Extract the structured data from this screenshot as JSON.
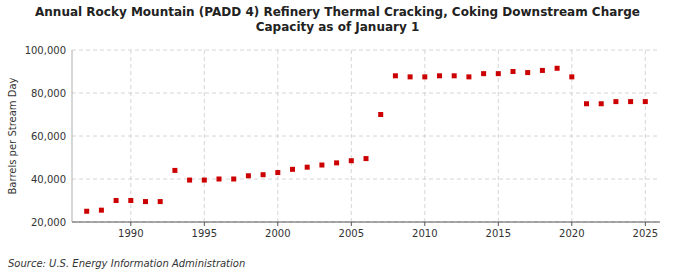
{
  "chart_data": {
    "type": "scatter",
    "title": "Annual Rocky Mountain (PADD 4) Refinery Thermal Cracking, Coking Downstream Charge\nCapacity as of January 1",
    "ylabel": "Barrels per Stream Day",
    "source": "Source: U.S. Energy Information Administration",
    "x": [
      1987,
      1988,
      1989,
      1990,
      1991,
      1992,
      1993,
      1994,
      1995,
      1996,
      1997,
      1998,
      1999,
      2000,
      2001,
      2002,
      2003,
      2004,
      2005,
      2006,
      2007,
      2008,
      2009,
      2010,
      2011,
      2012,
      2013,
      2014,
      2015,
      2016,
      2017,
      2018,
      2019,
      2020,
      2021,
      2022,
      2023,
      2024,
      2025
    ],
    "values": [
      25000,
      25500,
      30000,
      30000,
      29500,
      29500,
      44000,
      39500,
      39500,
      40000,
      40000,
      41500,
      42000,
      43000,
      44500,
      45500,
      46500,
      47500,
      48500,
      49500,
      70000,
      88000,
      87500,
      87500,
      88000,
      88000,
      87500,
      89000,
      89000,
      90000,
      89500,
      90500,
      91500,
      87500,
      75000,
      75000,
      76000,
      76000,
      76000
    ],
    "color": "#cc0000",
    "marker": "square",
    "xlim": [
      1986,
      2026
    ],
    "xticks": [
      1990,
      1995,
      2000,
      2005,
      2010,
      2015,
      2020,
      2025
    ],
    "ylim": [
      20000,
      100000
    ],
    "yticks": [
      {
        "value": 20000,
        "label": "20,000"
      },
      {
        "value": 40000,
        "label": "40,000"
      },
      {
        "value": 60000,
        "label": "60,000"
      },
      {
        "value": 80000,
        "label": "80,000"
      },
      {
        "value": 100000,
        "label": "100,000"
      }
    ],
    "grid": true
  }
}
